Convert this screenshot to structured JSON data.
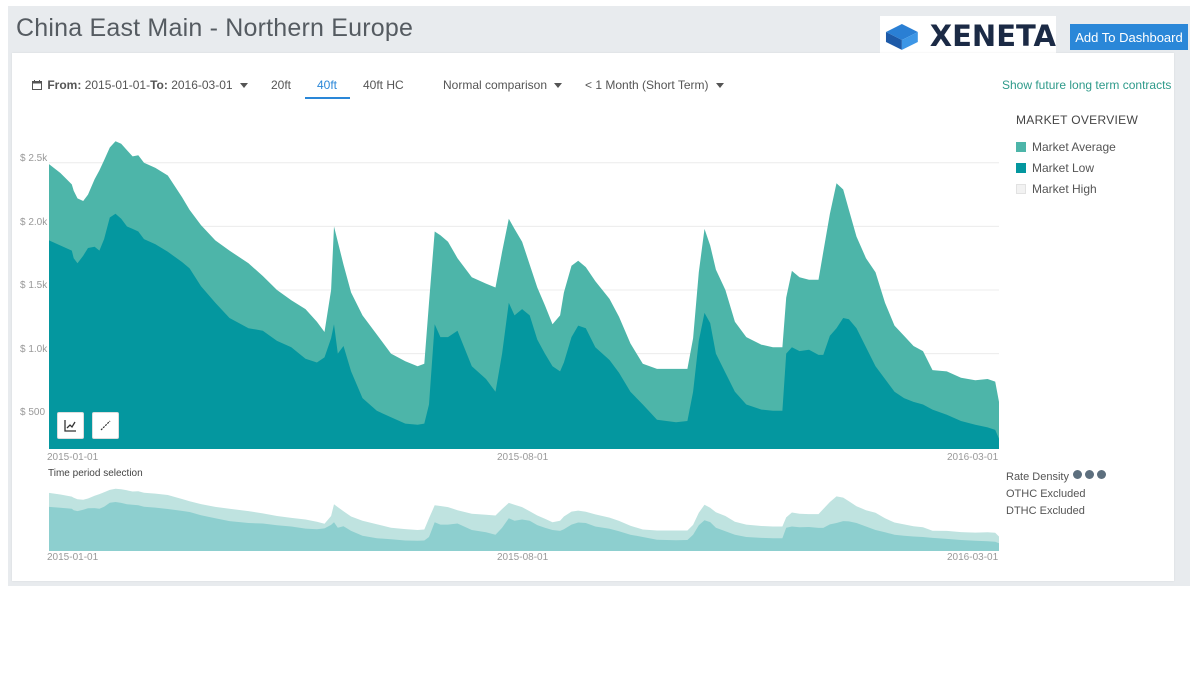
{
  "header": {
    "title": "China East Main - Northern Europe",
    "logo_text": "XENETA",
    "dashboard_button": "Add To Dashboard"
  },
  "toolbar": {
    "date_from_label": "From:",
    "date_from": "2015-01-01-",
    "date_to_label": "To:",
    "date_to": "2016-03-01",
    "tabs": [
      {
        "label": "20ft",
        "active": false
      },
      {
        "label": "40ft",
        "active": true
      },
      {
        "label": "40ft HC",
        "active": false
      }
    ],
    "comparison": "Normal comparison",
    "term": "< 1 Month (Short Term)",
    "future_link": "Show future long term contracts"
  },
  "legend": {
    "title": "MARKET OVERVIEW",
    "items": [
      {
        "label": "Market Average",
        "color": "#4db5a9"
      },
      {
        "label": "Market Low",
        "color": "#04979f"
      },
      {
        "label": "Market High",
        "color": "#f2f2f2"
      }
    ]
  },
  "side_panel": {
    "rate_density": "Rate Density",
    "othc": "OTHC Excluded",
    "dthc": "DTHC Excluded"
  },
  "time_period_label": "Time period selection",
  "colors": {
    "accent": "#2a87d8",
    "average": "#4db5a9",
    "low": "#04979f",
    "mini_average": "#bfe3e0",
    "mini_low": "#8dcfcf"
  },
  "chart_data": {
    "type": "area",
    "ylabel": "",
    "xlabel": "",
    "y_ticks": [
      "$ 500",
      "$ 1.0k",
      "$ 1.5k",
      "$ 2.0k",
      "$ 2.5k"
    ],
    "y_tick_values": [
      500,
      1000,
      1500,
      2000,
      2500
    ],
    "ylim": [
      250,
      2750
    ],
    "x_ticks": [
      "2015-01-01",
      "2015-08-01",
      "2016-03-01"
    ],
    "x_tick_positions": [
      0,
      0.475,
      1
    ],
    "x_range": [
      "2015-01-01",
      "2016-03-01"
    ],
    "grid": true,
    "legend_placement": "right",
    "series": [
      {
        "name": "Market Average",
        "points": [
          [
            0.0,
            2490
          ],
          [
            0.012,
            2420
          ],
          [
            0.024,
            2330
          ],
          [
            0.026,
            2280
          ],
          [
            0.03,
            2220
          ],
          [
            0.036,
            2200
          ],
          [
            0.041,
            2250
          ],
          [
            0.048,
            2370
          ],
          [
            0.053,
            2440
          ],
          [
            0.058,
            2520
          ],
          [
            0.064,
            2620
          ],
          [
            0.07,
            2670
          ],
          [
            0.076,
            2650
          ],
          [
            0.082,
            2600
          ],
          [
            0.088,
            2550
          ],
          [
            0.094,
            2560
          ],
          [
            0.1,
            2500
          ],
          [
            0.112,
            2460
          ],
          [
            0.125,
            2400
          ],
          [
            0.14,
            2230
          ],
          [
            0.148,
            2130
          ],
          [
            0.16,
            2010
          ],
          [
            0.175,
            1890
          ],
          [
            0.19,
            1810
          ],
          [
            0.21,
            1710
          ],
          [
            0.225,
            1610
          ],
          [
            0.24,
            1500
          ],
          [
            0.255,
            1420
          ],
          [
            0.27,
            1350
          ],
          [
            0.282,
            1250
          ],
          [
            0.29,
            1170
          ],
          [
            0.297,
            1500
          ],
          [
            0.3,
            2000
          ],
          [
            0.304,
            1880
          ],
          [
            0.31,
            1700
          ],
          [
            0.318,
            1480
          ],
          [
            0.33,
            1300
          ],
          [
            0.345,
            1150
          ],
          [
            0.36,
            1000
          ],
          [
            0.375,
            940
          ],
          [
            0.388,
            900
          ],
          [
            0.395,
            920
          ],
          [
            0.4,
            1400
          ],
          [
            0.406,
            1960
          ],
          [
            0.412,
            1930
          ],
          [
            0.42,
            1880
          ],
          [
            0.43,
            1750
          ],
          [
            0.445,
            1600
          ],
          [
            0.46,
            1550
          ],
          [
            0.47,
            1520
          ],
          [
            0.477,
            1800
          ],
          [
            0.484,
            2060
          ],
          [
            0.49,
            1980
          ],
          [
            0.498,
            1880
          ],
          [
            0.506,
            1700
          ],
          [
            0.514,
            1520
          ],
          [
            0.522,
            1380
          ],
          [
            0.53,
            1230
          ],
          [
            0.538,
            1300
          ],
          [
            0.542,
            1480
          ],
          [
            0.55,
            1690
          ],
          [
            0.557,
            1730
          ],
          [
            0.565,
            1680
          ],
          [
            0.575,
            1570
          ],
          [
            0.59,
            1430
          ],
          [
            0.6,
            1290
          ],
          [
            0.612,
            1080
          ],
          [
            0.625,
            920
          ],
          [
            0.64,
            880
          ],
          [
            0.66,
            880
          ],
          [
            0.672,
            880
          ],
          [
            0.678,
            1120
          ],
          [
            0.684,
            1640
          ],
          [
            0.69,
            1980
          ],
          [
            0.696,
            1850
          ],
          [
            0.702,
            1660
          ],
          [
            0.712,
            1500
          ],
          [
            0.722,
            1250
          ],
          [
            0.734,
            1130
          ],
          [
            0.75,
            1070
          ],
          [
            0.762,
            1050
          ],
          [
            0.772,
            1050
          ],
          [
            0.776,
            1440
          ],
          [
            0.782,
            1650
          ],
          [
            0.79,
            1600
          ],
          [
            0.8,
            1580
          ],
          [
            0.81,
            1580
          ],
          [
            0.815,
            1800
          ],
          [
            0.822,
            2100
          ],
          [
            0.829,
            2340
          ],
          [
            0.836,
            2290
          ],
          [
            0.842,
            2130
          ],
          [
            0.85,
            1920
          ],
          [
            0.86,
            1750
          ],
          [
            0.87,
            1640
          ],
          [
            0.88,
            1400
          ],
          [
            0.89,
            1220
          ],
          [
            0.9,
            1140
          ],
          [
            0.91,
            1060
          ],
          [
            0.92,
            1020
          ],
          [
            0.93,
            870
          ],
          [
            0.945,
            860
          ],
          [
            0.96,
            810
          ],
          [
            0.975,
            790
          ],
          [
            0.988,
            800
          ],
          [
            0.996,
            780
          ],
          [
            1.0,
            620
          ]
        ]
      },
      {
        "name": "Market Low",
        "points": [
          [
            0.0,
            1890
          ],
          [
            0.012,
            1850
          ],
          [
            0.024,
            1810
          ],
          [
            0.026,
            1750
          ],
          [
            0.03,
            1710
          ],
          [
            0.036,
            1770
          ],
          [
            0.041,
            1830
          ],
          [
            0.048,
            1840
          ],
          [
            0.053,
            1810
          ],
          [
            0.058,
            1900
          ],
          [
            0.064,
            2070
          ],
          [
            0.07,
            2100
          ],
          [
            0.076,
            2060
          ],
          [
            0.082,
            2000
          ],
          [
            0.088,
            1980
          ],
          [
            0.094,
            1960
          ],
          [
            0.1,
            1900
          ],
          [
            0.112,
            1860
          ],
          [
            0.125,
            1800
          ],
          [
            0.14,
            1720
          ],
          [
            0.148,
            1670
          ],
          [
            0.16,
            1530
          ],
          [
            0.175,
            1400
          ],
          [
            0.19,
            1280
          ],
          [
            0.21,
            1200
          ],
          [
            0.225,
            1180
          ],
          [
            0.24,
            1100
          ],
          [
            0.255,
            1050
          ],
          [
            0.27,
            960
          ],
          [
            0.282,
            930
          ],
          [
            0.29,
            970
          ],
          [
            0.297,
            1120
          ],
          [
            0.3,
            1230
          ],
          [
            0.304,
            1000
          ],
          [
            0.31,
            1060
          ],
          [
            0.318,
            860
          ],
          [
            0.33,
            650
          ],
          [
            0.345,
            550
          ],
          [
            0.36,
            500
          ],
          [
            0.375,
            450
          ],
          [
            0.388,
            440
          ],
          [
            0.395,
            450
          ],
          [
            0.4,
            600
          ],
          [
            0.406,
            1230
          ],
          [
            0.412,
            1130
          ],
          [
            0.42,
            1130
          ],
          [
            0.43,
            1180
          ],
          [
            0.445,
            900
          ],
          [
            0.46,
            800
          ],
          [
            0.47,
            700
          ],
          [
            0.477,
            1000
          ],
          [
            0.484,
            1400
          ],
          [
            0.49,
            1300
          ],
          [
            0.498,
            1350
          ],
          [
            0.506,
            1300
          ],
          [
            0.514,
            1110
          ],
          [
            0.522,
            1000
          ],
          [
            0.53,
            900
          ],
          [
            0.538,
            860
          ],
          [
            0.542,
            930
          ],
          [
            0.55,
            1130
          ],
          [
            0.557,
            1220
          ],
          [
            0.565,
            1200
          ],
          [
            0.575,
            1050
          ],
          [
            0.59,
            950
          ],
          [
            0.6,
            850
          ],
          [
            0.612,
            700
          ],
          [
            0.625,
            600
          ],
          [
            0.64,
            480
          ],
          [
            0.66,
            460
          ],
          [
            0.672,
            470
          ],
          [
            0.678,
            700
          ],
          [
            0.684,
            1100
          ],
          [
            0.69,
            1320
          ],
          [
            0.696,
            1240
          ],
          [
            0.702,
            1000
          ],
          [
            0.712,
            850
          ],
          [
            0.722,
            700
          ],
          [
            0.734,
            600
          ],
          [
            0.75,
            560
          ],
          [
            0.762,
            550
          ],
          [
            0.772,
            550
          ],
          [
            0.776,
            1000
          ],
          [
            0.782,
            1050
          ],
          [
            0.79,
            1020
          ],
          [
            0.8,
            1030
          ],
          [
            0.81,
            990
          ],
          [
            0.815,
            990
          ],
          [
            0.822,
            1140
          ],
          [
            0.829,
            1200
          ],
          [
            0.836,
            1280
          ],
          [
            0.842,
            1270
          ],
          [
            0.85,
            1200
          ],
          [
            0.86,
            1050
          ],
          [
            0.87,
            900
          ],
          [
            0.88,
            800
          ],
          [
            0.89,
            700
          ],
          [
            0.9,
            650
          ],
          [
            0.91,
            620
          ],
          [
            0.92,
            600
          ],
          [
            0.93,
            560
          ],
          [
            0.945,
            520
          ],
          [
            0.96,
            470
          ],
          [
            0.975,
            440
          ],
          [
            0.988,
            420
          ],
          [
            0.996,
            400
          ],
          [
            1.0,
            330
          ]
        ]
      }
    ]
  }
}
